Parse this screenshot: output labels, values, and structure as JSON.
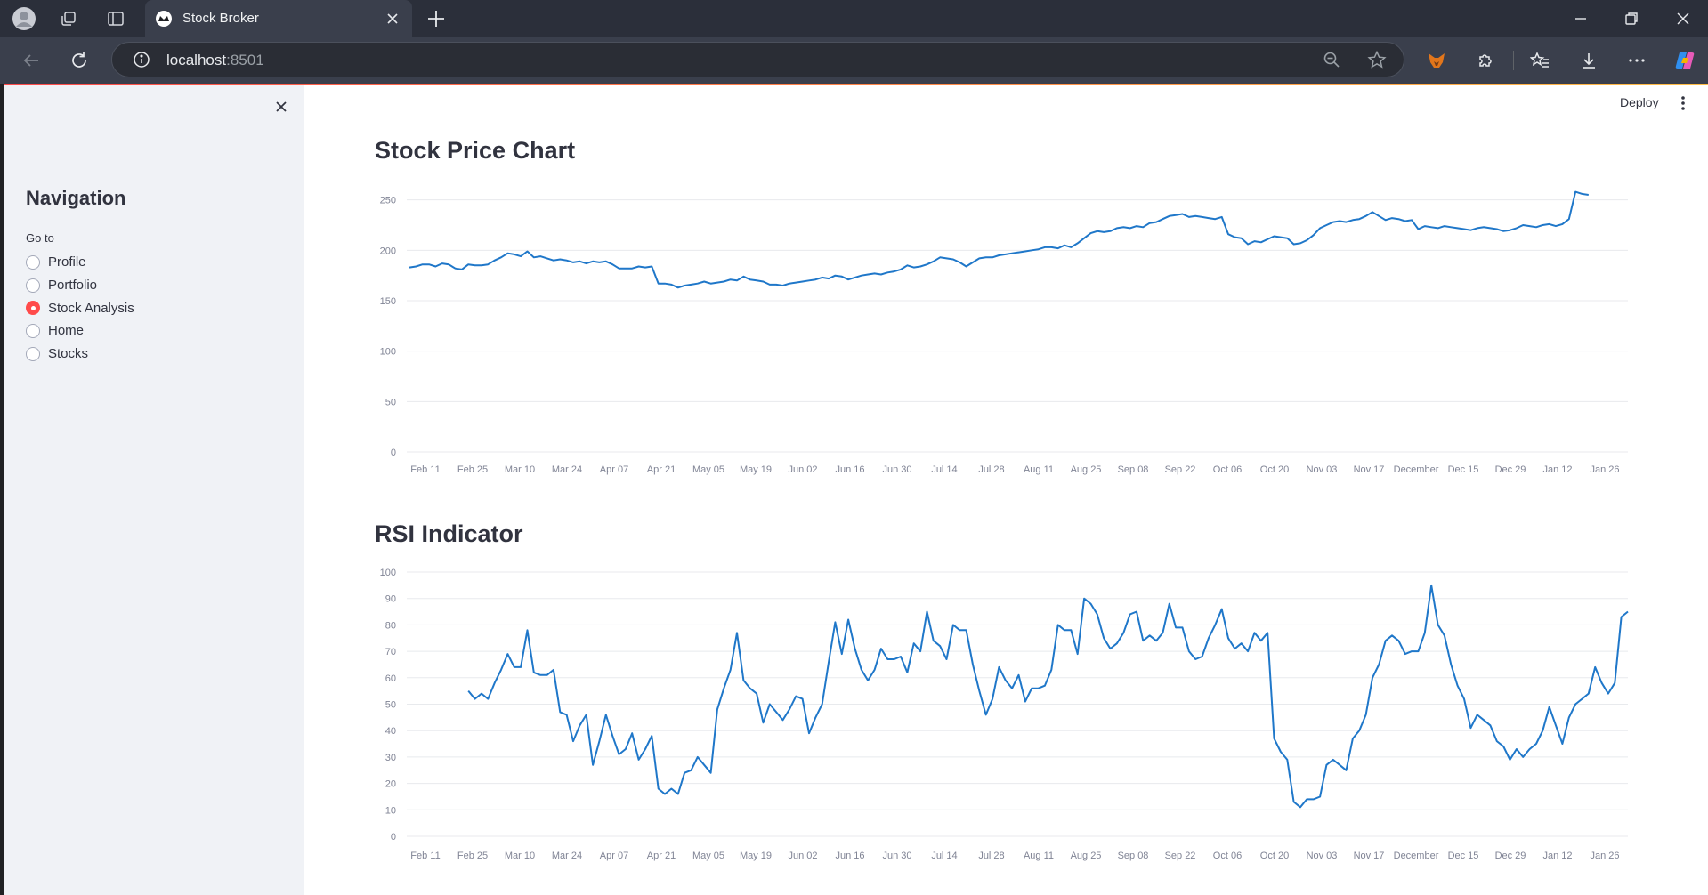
{
  "browser": {
    "tab_title": "Stock Broker",
    "url_host": "localhost",
    "url_port": ":8501"
  },
  "app": {
    "deploy_label": "Deploy"
  },
  "sidebar": {
    "title": "Navigation",
    "radio_label": "Go to",
    "options": [
      "Profile",
      "Portfolio",
      "Stock Analysis",
      "Home",
      "Stocks"
    ],
    "selected": "Stock Analysis"
  },
  "colors": {
    "accent": "#ff4b4b",
    "line": "#1f77c9",
    "sidebar_bg": "#f0f2f6"
  },
  "chart_data": [
    {
      "type": "line",
      "title": "Stock Price Chart",
      "ylim": [
        0,
        255
      ],
      "yticks": [
        0,
        50,
        100,
        150,
        200,
        250
      ],
      "xtick_labels": [
        "Feb 11",
        "Feb 25",
        "Mar 10",
        "Mar 24",
        "Apr 07",
        "Apr 21",
        "May 05",
        "May 19",
        "Jun 02",
        "Jun 16",
        "Jun 30",
        "Jul 14",
        "Jul 28",
        "Aug 11",
        "Aug 25",
        "Sep 08",
        "Sep 22",
        "Oct 06",
        "Oct 20",
        "Nov 03",
        "Nov 17",
        "December",
        "Dec 15",
        "Dec 29",
        "Jan 12",
        "Jan 26"
      ],
      "grid": true,
      "values": [
        183,
        184,
        186,
        186,
        184,
        187,
        186,
        182,
        181,
        186,
        185,
        185,
        186,
        190,
        193,
        197,
        196,
        194,
        199,
        193,
        194,
        192,
        190,
        191,
        190,
        188,
        189,
        187,
        189,
        188,
        189,
        186,
        182,
        182,
        182,
        184,
        183,
        184,
        167,
        167,
        166,
        163,
        165,
        166,
        167,
        169,
        167,
        168,
        169,
        171,
        170,
        174,
        171,
        170,
        169,
        166,
        166,
        165,
        167,
        168,
        169,
        170,
        171,
        173,
        172,
        175,
        174,
        171,
        173,
        175,
        176,
        177,
        176,
        178,
        179,
        181,
        185,
        183,
        184,
        186,
        189,
        193,
        192,
        191,
        188,
        184,
        188,
        192,
        193,
        193,
        195,
        196,
        197,
        198,
        199,
        200,
        201,
        203,
        203,
        202,
        205,
        203,
        207,
        212,
        217,
        219,
        218,
        219,
        222,
        223,
        222,
        224,
        223,
        227,
        228,
        231,
        234,
        235,
        236,
        233,
        234,
        233,
        232,
        231,
        233,
        216,
        213,
        212,
        206,
        209,
        208,
        211,
        214,
        213,
        212,
        206,
        207,
        210,
        215,
        222,
        225,
        228,
        229,
        228,
        230,
        231,
        234,
        238,
        234,
        230,
        232,
        231,
        229,
        230,
        221,
        224,
        223,
        222,
        224,
        223,
        222,
        221,
        220,
        222,
        223,
        222,
        221,
        219,
        220,
        222,
        225,
        224,
        223,
        225,
        226,
        224,
        226,
        231,
        258,
        256,
        255
      ]
    },
    {
      "type": "line",
      "title": "RSI Indicator",
      "ylim": [
        0,
        100
      ],
      "yticks": [
        0,
        10,
        20,
        30,
        40,
        50,
        60,
        70,
        80,
        90,
        100
      ],
      "xtick_labels": [
        "Feb 11",
        "Feb 25",
        "Mar 10",
        "Mar 24",
        "Apr 07",
        "Apr 21",
        "May 05",
        "May 19",
        "Jun 02",
        "Jun 16",
        "Jun 30",
        "Jul 14",
        "Jul 28",
        "Aug 11",
        "Aug 25",
        "Sep 08",
        "Sep 22",
        "Oct 06",
        "Oct 20",
        "Nov 03",
        "Nov 17",
        "December",
        "Dec 15",
        "Dec 29",
        "Jan 12",
        "Jan 26"
      ],
      "grid": true,
      "start_index": 9,
      "values": [
        55,
        52,
        54,
        52,
        58,
        63,
        69,
        64,
        64,
        78,
        62,
        61,
        61,
        63,
        47,
        46,
        36,
        42,
        46,
        27,
        36,
        46,
        38,
        31,
        33,
        39,
        29,
        33,
        38,
        18,
        16,
        18,
        16,
        24,
        25,
        30,
        27,
        24,
        48,
        56,
        63,
        77,
        59,
        56,
        54,
        43,
        50,
        47,
        44,
        48,
        53,
        52,
        39,
        45,
        50,
        66,
        81,
        69,
        82,
        71,
        63,
        59,
        63,
        71,
        67,
        67,
        68,
        62,
        73,
        70,
        85,
        74,
        72,
        67,
        80,
        78,
        78,
        65,
        55,
        46,
        52,
        64,
        59,
        56,
        61,
        51,
        56,
        56,
        57,
        63,
        80,
        78,
        78,
        69,
        90,
        88,
        84,
        75,
        71,
        73,
        77,
        84,
        85,
        74,
        76,
        74,
        77,
        88,
        79,
        79,
        70,
        67,
        68,
        75,
        80,
        86,
        75,
        71,
        73,
        70,
        77,
        74,
        77,
        37,
        32,
        29,
        13,
        11,
        14,
        14,
        15,
        27,
        29,
        27,
        25,
        37,
        40,
        46,
        60,
        65,
        74,
        76,
        74,
        69,
        70,
        70,
        77,
        95,
        80,
        76,
        65,
        57,
        52,
        41,
        46,
        44,
        42,
        36,
        34,
        29,
        33,
        30,
        33,
        35,
        40,
        49,
        42,
        35,
        45,
        50,
        52,
        54,
        64,
        58,
        54,
        58,
        83,
        85
      ]
    }
  ]
}
